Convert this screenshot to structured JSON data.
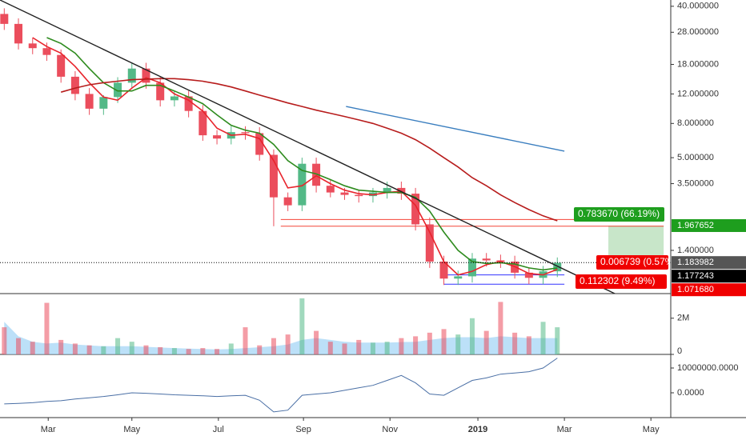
{
  "chart_data": [
    {
      "type": "candlestick",
      "x": [
        3,
        13,
        23,
        33,
        43,
        53,
        63,
        73,
        83,
        93,
        103,
        113,
        123,
        133,
        143,
        153,
        163,
        173,
        183,
        193,
        203,
        213,
        223,
        233,
        243,
        253,
        263,
        273,
        283,
        293,
        303,
        313,
        323,
        333,
        343,
        353,
        363,
        373,
        383,
        393
      ],
      "open": [
        36,
        31.4,
        24,
        22.5,
        20.5,
        15.2,
        12,
        9.8,
        11.5,
        14,
        17,
        14,
        11,
        11.6,
        9.5,
        6.8,
        6.5,
        7.1,
        7,
        5.2,
        2.9,
        2.6,
        4.6,
        3.4,
        3.1,
        3.0,
        2.95,
        3.1,
        3.3,
        3.05,
        2.0,
        1.2,
        0.95,
        0.98,
        1.25,
        1.22,
        1.2,
        1.03,
        0.96,
        1.05
      ],
      "high": [
        38.9,
        33.9,
        25.9,
        24.3,
        22.1,
        16.4,
        13,
        11.8,
        15.1,
        18.4,
        18.4,
        15.1,
        12.5,
        12.5,
        10.3,
        7.3,
        7.7,
        7.7,
        7.6,
        5.6,
        3.1,
        5,
        5,
        3.7,
        3.3,
        3.2,
        3.3,
        3.6,
        3.6,
        3.3,
        2.2,
        1.3,
        1.06,
        1.35,
        1.35,
        1.32,
        1.3,
        1.11,
        1.13,
        1.27
      ],
      "low": [
        28.9,
        22.1,
        20.7,
        18.9,
        14,
        11,
        9,
        9,
        10.6,
        12.9,
        12.9,
        10.1,
        10.1,
        8.7,
        6.3,
        6,
        6,
        6.4,
        4.8,
        1.95,
        2.4,
        2.4,
        3.1,
        2.9,
        2.8,
        2.7,
        2.7,
        2.85,
        2.8,
        1.84,
        1.1,
        0.87,
        0.87,
        0.9,
        1.12,
        1.1,
        0.95,
        0.88,
        0.88,
        0.97
      ],
      "close": [
        31.4,
        24,
        22.5,
        20.5,
        15.2,
        12,
        9.8,
        11.5,
        14,
        17,
        14,
        11,
        11.6,
        9.5,
        6.8,
        6.5,
        7.1,
        7,
        5.2,
        2.9,
        2.6,
        4.6,
        3.4,
        3.1,
        3.0,
        2.95,
        3.1,
        3.3,
        3.05,
        2.0,
        1.2,
        0.95,
        0.98,
        1.25,
        1.22,
        1.2,
        1.03,
        0.96,
        1.05,
        1.18
      ],
      "up_color": "#53b987",
      "down_color": "#eb4d5c",
      "series": [
        {
          "color": "#e8242c",
          "values": [
            null,
            null,
            26,
            23,
            21,
            17.5,
            14,
            11.5,
            11,
            13,
            15,
            14,
            12,
            11,
            9.5,
            7.5,
            6.8,
            6.9,
            6.5,
            4.8,
            3.3,
            3.4,
            3.9,
            3.5,
            3.2,
            3.05,
            3.0,
            3.1,
            3.15,
            2.6,
            1.8,
            1.2,
            1.0,
            1.05,
            1.15,
            1.2,
            1.12,
            1.02,
            1.0,
            1.08
          ]
        },
        {
          "color": "#2e8b1e",
          "values": [
            null,
            null,
            null,
            26,
            24,
            21,
            17,
            14,
            12.5,
            12.5,
            13.5,
            13.5,
            12.5,
            11.5,
            10.5,
            9,
            7.8,
            7.3,
            7,
            6,
            4.8,
            4.2,
            4,
            3.7,
            3.4,
            3.2,
            3.15,
            3.1,
            3.1,
            2.9,
            2.4,
            1.8,
            1.4,
            1.2,
            1.17,
            1.18,
            1.16,
            1.1,
            1.07,
            1.1
          ]
        },
        {
          "color": "#b71c1c",
          "values": [
            null,
            null,
            null,
            null,
            12.3,
            13,
            13.6,
            14,
            14.3,
            14.6,
            14.7,
            14.8,
            14.8,
            14.6,
            14.3,
            13.8,
            13.2,
            12.5,
            11.8,
            11.2,
            10.6,
            10.1,
            9.6,
            9.2,
            8.8,
            8.4,
            8,
            7.5,
            7,
            6.4,
            5.7,
            5,
            4.4,
            3.8,
            3.4,
            3.0,
            2.7,
            2.45,
            2.25,
            2.1
          ]
        }
      ],
      "trendlines": [
        {
          "x": [
            0,
            434
          ],
          "values": [
            43.6,
            0.77
          ],
          "color": "#222222"
        },
        {
          "x": [
            244,
            398
          ],
          "values": [
            10.1,
            5.47
          ],
          "color": "#3a7ebf"
        }
      ],
      "levels": [
        {
          "value": 2.14,
          "x": [
            198,
            468
          ],
          "color": "#f44336"
        },
        {
          "value": 1.95,
          "x": [
            198,
            468
          ],
          "color": "#f44336"
        },
        {
          "value": 1.0,
          "x": [
            313,
            398
          ],
          "color": "#3333ff"
        },
        {
          "value": 0.88,
          "x": [
            313,
            398
          ],
          "color": "#3333ff"
        }
      ],
      "box": {
        "x": [
          429,
          468
        ],
        "values": [
          1.183982,
          1.967652
        ],
        "color": "#c8e6c9"
      },
      "measures": [
        {
          "label": "0.783670 (66.19%)",
          "color": "#1e9e1e"
        },
        {
          "label": "0.006739 (0.57%)",
          "color": "#f00000"
        },
        {
          "label": "0.112302 (9.49%)",
          "color": "#f00000"
        }
      ],
      "price_labels": [
        {
          "value": 1.967652,
          "label": "1.967652",
          "color": "#1e9e1e"
        },
        {
          "value": 1.183982,
          "label": "1.183982",
          "color": "#555555"
        },
        {
          "value": 1.177243,
          "label": "1.177243",
          "color": "#000000"
        },
        {
          "value": 1.07168,
          "label": "1.071680",
          "color": "#f00000"
        }
      ],
      "log_scale": true,
      "xlim": [
        0,
        473
      ],
      "xticks": [
        {
          "value": 34,
          "label": "Mar"
        },
        {
          "value": 93,
          "label": "May"
        },
        {
          "value": 154,
          "label": "Jul"
        },
        {
          "value": 214,
          "label": "Sep"
        },
        {
          "value": 275,
          "label": "Nov"
        },
        {
          "value": 337,
          "label": "2019"
        },
        {
          "value": 398,
          "label": "Mar"
        },
        {
          "value": 459,
          "label": "May"
        }
      ],
      "ylim": [
        0.773,
        43.6
      ],
      "yticks": [
        {
          "value": 40,
          "label": "40.000000"
        },
        {
          "value": 28,
          "label": "28.000000"
        },
        {
          "value": 18,
          "label": "18.000000"
        },
        {
          "value": 12,
          "label": "12.000000"
        },
        {
          "value": 8,
          "label": "8.000000"
        },
        {
          "value": 5,
          "label": "5.000000"
        },
        {
          "value": 3.5,
          "label": "3.500000"
        },
        {
          "value": 1.4,
          "label": "1.400000"
        }
      ]
    },
    {
      "type": "bar",
      "values": [
        1500000,
        900000,
        700000,
        2850000,
        800000,
        600000,
        500000,
        450000,
        900000,
        700000,
        500000,
        400000,
        350000,
        300000,
        350000,
        300000,
        600000,
        1500000,
        500000,
        900000,
        1100000,
        3100000,
        1300000,
        700000,
        600000,
        800000,
        650000,
        700000,
        900000,
        1000000,
        1200000,
        1400000,
        1100000,
        2000000,
        1300000,
        2900000,
        1200000,
        1000000,
        1800000,
        1500000
      ],
      "average": [
        1800000,
        1000000,
        700000,
        600000,
        650000,
        550000,
        500000,
        450000,
        450000,
        450000,
        420000,
        380000,
        350000,
        320000,
        300000,
        280000,
        300000,
        350000,
        400000,
        450000,
        550000,
        800000,
        900000,
        800000,
        700000,
        650000,
        650000,
        650000,
        680000,
        700000,
        800000,
        900000,
        950000,
        950000,
        900000,
        1000000,
        950000,
        900000,
        900000,
        900000
      ],
      "average_color": "#9fd3f5",
      "ylim": [
        0,
        3360000
      ],
      "yticks": [
        {
          "value": 2000000,
          "label": "2M"
        },
        0
      ]
    },
    {
      "type": "line",
      "values": [
        -4500000,
        -4300000,
        -4000000,
        -3500000,
        -3200000,
        -2500000,
        -2000000,
        -1500000,
        -800000,
        0,
        -200000,
        -500000,
        -800000,
        -1000000,
        -1200000,
        -1500000,
        -1200000,
        -1000000,
        -3000000,
        -7700000,
        -7000000,
        -1000000,
        -500000,
        0,
        1000000,
        2000000,
        3000000,
        5000000,
        7000000,
        4000000,
        -500000,
        -1000000,
        2000000,
        5000000,
        6000000,
        7500000,
        8000000,
        8500000,
        10000000,
        14000000
      ],
      "color": "#4a6fa5",
      "ylim": [
        -10000000,
        15480000
      ],
      "yticks": [
        {
          "value": 10000000,
          "label": "10000000.0000"
        },
        {
          "value": 0,
          "label": "0.0000"
        }
      ]
    }
  ]
}
